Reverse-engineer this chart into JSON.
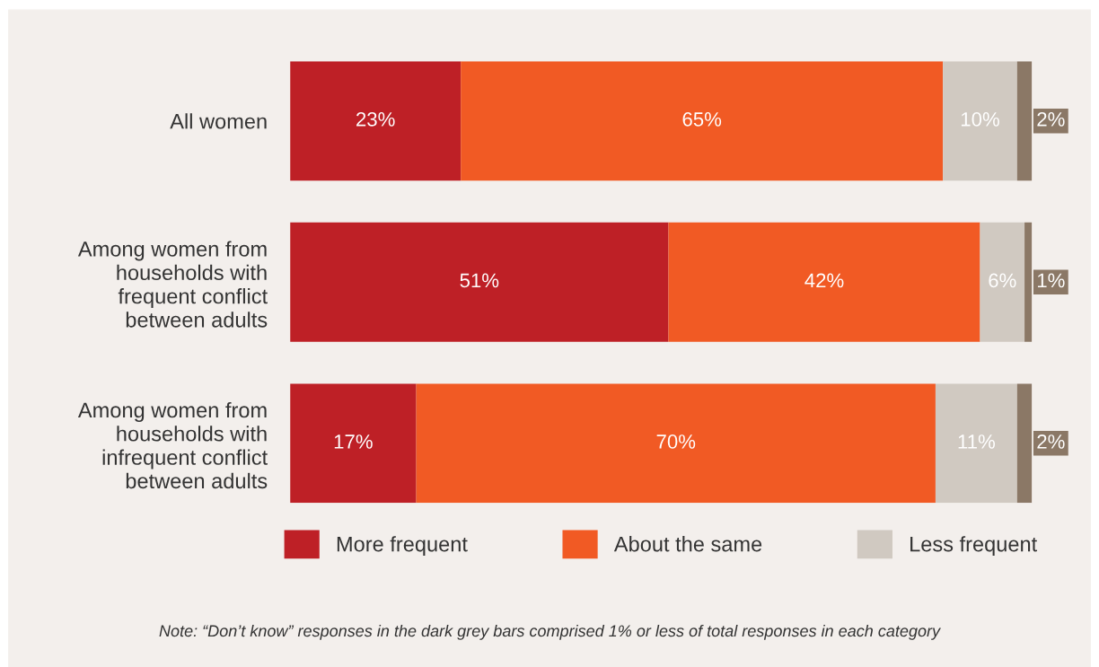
{
  "chart_data": {
    "type": "bar",
    "orientation": "horizontal",
    "stacked": true,
    "data_labels": true,
    "legend": "bottom",
    "grid": false,
    "categories": [
      "All women",
      "Among women from households with frequent conflict between adults",
      "Among women from households with infrequent conflict between adults"
    ],
    "series": [
      {
        "name": "More frequent",
        "color": "#be2026",
        "values": [
          23,
          51,
          17
        ],
        "value_labels": [
          "23%",
          "51%",
          "17%"
        ]
      },
      {
        "name": "About the same",
        "color": "#f15a24",
        "values": [
          65,
          42,
          70
        ],
        "value_labels": [
          "65%",
          "42%",
          "70%"
        ]
      },
      {
        "name": "Less frequent",
        "color": "#d0c9c1",
        "values": [
          10,
          6,
          11
        ],
        "value_labels": [
          "10%",
          "6%",
          "11%"
        ]
      },
      {
        "color": "#8b7866",
        "values": [
          2,
          1,
          2
        ],
        "value_labels": [
          "2%",
          "1%",
          "2%"
        ]
      }
    ],
    "annotations": [
      "Note: “Don’t know” responses in the dark grey bars comprised 1% or less of total responses in each category"
    ]
  }
}
